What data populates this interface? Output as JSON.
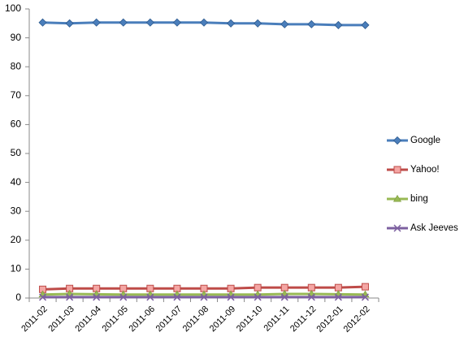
{
  "chart_data": {
    "type": "line",
    "categories": [
      "2011-02",
      "2011-03",
      "2011-04",
      "2011-05",
      "2011-06",
      "2011-07",
      "2011-08",
      "2011-09",
      "2011-10",
      "2011-11",
      "2011-12",
      "2012-01",
      "2012-02"
    ],
    "series": [
      {
        "name": "Google",
        "color": "#4a7ebb",
        "marker": "diamond",
        "values": [
          95.3,
          95.0,
          95.3,
          95.3,
          95.3,
          95.3,
          95.3,
          95.0,
          95.0,
          94.7,
          94.7,
          94.4,
          94.4
        ]
      },
      {
        "name": "Yahoo!",
        "color": "#be4b48",
        "marker": "square",
        "values": [
          3.0,
          3.3,
          3.3,
          3.3,
          3.3,
          3.3,
          3.3,
          3.3,
          3.6,
          3.6,
          3.6,
          3.6,
          3.9
        ]
      },
      {
        "name": "bing",
        "color": "#98b954",
        "marker": "triangle",
        "values": [
          1.2,
          1.4,
          1.3,
          1.2,
          1.2,
          1.2,
          1.2,
          1.2,
          1.2,
          1.4,
          1.4,
          1.3,
          1.2
        ]
      },
      {
        "name": "Ask Jeeves",
        "color": "#7d60a0",
        "marker": "x",
        "values": [
          0.3,
          0.3,
          0.3,
          0.3,
          0.3,
          0.3,
          0.3,
          0.3,
          0.3,
          0.3,
          0.3,
          0.3,
          0.3
        ]
      }
    ],
    "ylim": [
      0,
      100
    ],
    "yticks": [
      0,
      10,
      20,
      30,
      40,
      50,
      60,
      70,
      80,
      90,
      100
    ],
    "grid": false,
    "legend": "right"
  }
}
